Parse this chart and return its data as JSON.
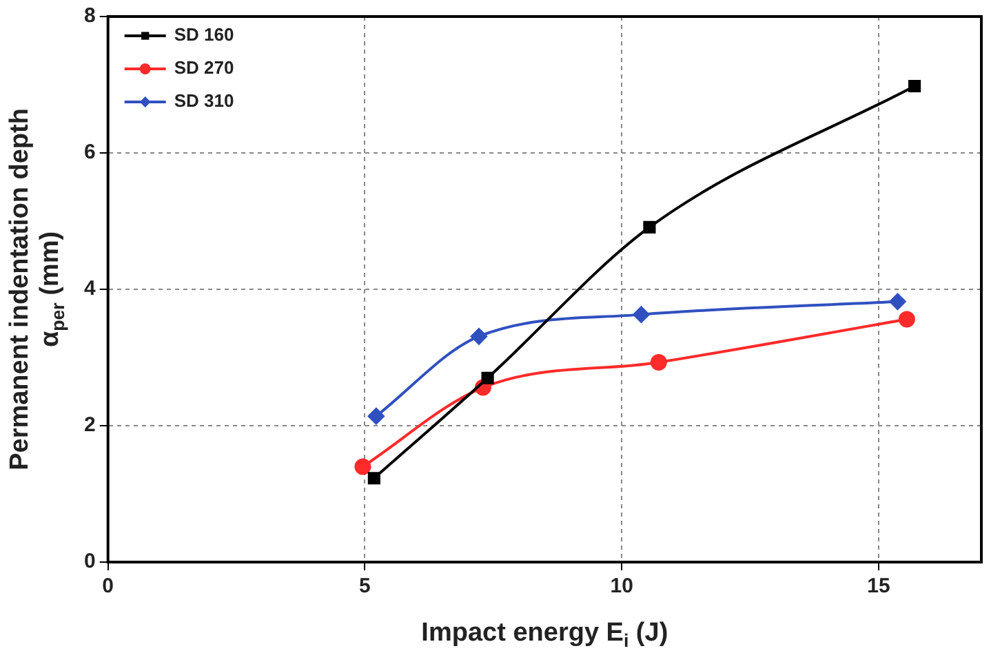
{
  "chart_data": {
    "type": "line",
    "xlabel": "Impact energy E$_{i}$ (J)",
    "ylabel": "Permanent indentation depth\nα$_{per}$ (mm)",
    "xlim": [
      0,
      17
    ],
    "xticks": [
      0,
      5,
      10,
      15
    ],
    "ylim": [
      0,
      8
    ],
    "yticks": [
      0,
      2,
      4,
      6,
      8
    ],
    "grid": true,
    "legend": "top left",
    "line_style": "solid",
    "series": [
      {
        "name": "SD 160",
        "color": "#000000",
        "marker": "square",
        "x": [
          5.18,
          7.39,
          10.54,
          15.7
        ],
        "values": [
          1.23,
          2.7,
          4.91,
          6.98
        ]
      },
      {
        "name": "SD 270",
        "color": "#ff2a2a",
        "marker": "circle",
        "x": [
          4.96,
          7.3,
          10.72,
          15.55
        ],
        "values": [
          1.4,
          2.56,
          2.93,
          3.56
        ]
      },
      {
        "name": "SD 310",
        "color": "#3050c0",
        "marker": "diamond",
        "x": [
          5.22,
          7.22,
          10.38,
          15.37
        ],
        "values": [
          2.14,
          3.31,
          3.63,
          3.82
        ]
      }
    ]
  }
}
